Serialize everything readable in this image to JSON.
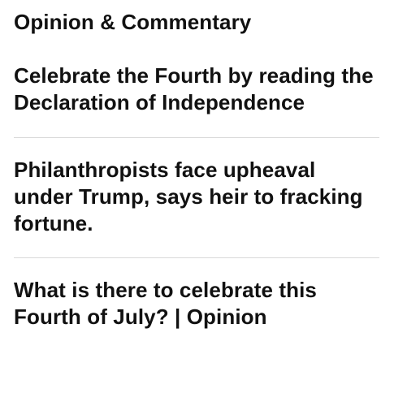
{
  "section": {
    "title": "Opinion & Commentary"
  },
  "stories": [
    {
      "headline": "Celebrate the Fourth by reading the Declaration of Independence"
    },
    {
      "headline": "Philanthropists face upheaval under Trump, says heir to fracking fortune."
    },
    {
      "headline": "What is there to celebrate this Fourth of July? | Opinion"
    }
  ]
}
